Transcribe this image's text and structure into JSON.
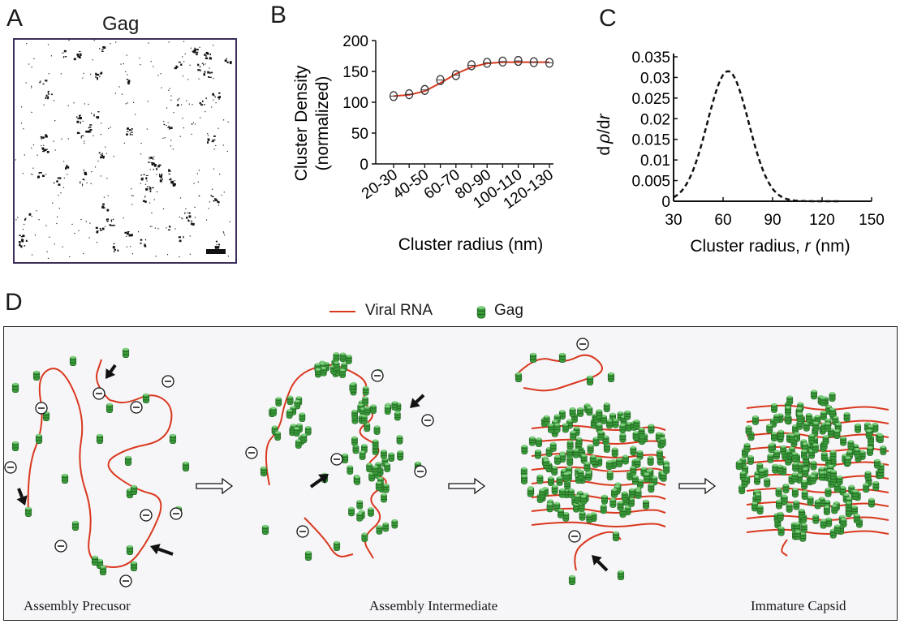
{
  "panels": {
    "a": {
      "letter": "A",
      "title": "Gag"
    },
    "b": {
      "letter": "B"
    },
    "c": {
      "letter": "C"
    },
    "d": {
      "letter": "D",
      "legend": {
        "rna": "Viral RNA",
        "gag": "Gag"
      },
      "stages": [
        "Assembly Precusor",
        "Assembly Intermediate",
        "Immature Capsid"
      ]
    }
  },
  "colors": {
    "rna": "#d9381e",
    "gag": "#3a9a3a",
    "frame": "#3c2f5a",
    "panel_bg": "#f6f6f8"
  },
  "chart_data": [
    {
      "type": "scatter",
      "xlabel": "Cluster radius (nm)",
      "ylabel": "Cluster Density (normalized)",
      "ylabel_lines": [
        "Cluster Density",
        "(normalized)"
      ],
      "ylim": [
        0,
        200
      ],
      "yticks": [
        0,
        50,
        100,
        150,
        200
      ],
      "xtick_labels": [
        "20-30",
        "40-50",
        "60-70",
        "80-90",
        "100-110",
        "120-130"
      ],
      "categories": [
        "20-30",
        "30-40",
        "40-50",
        "50-60",
        "60-70",
        "70-80",
        "80-90",
        "90-100",
        "100-110",
        "110-120",
        "120-130"
      ],
      "values": [
        110,
        113,
        120,
        136,
        144,
        160,
        164,
        166,
        167,
        165,
        164
      ],
      "fit": [
        110,
        112,
        118,
        131,
        146,
        157,
        163,
        165,
        165,
        165,
        165
      ],
      "colors": {
        "fit": "#d9381e",
        "points": "#333333"
      }
    },
    {
      "type": "line",
      "xlabel": "Cluster radius, r (nm)",
      "xlabel_parts": [
        "Cluster radius, ",
        "r",
        " (nm)"
      ],
      "ylabel_parts": [
        "d",
        "ρ",
        "/d",
        "r"
      ],
      "xlim": [
        30,
        150
      ],
      "xticks": [
        30,
        60,
        90,
        120,
        150
      ],
      "ylim": [
        0,
        0.035
      ],
      "yticks": [
        "0",
        "0.005",
        "0.01",
        "0.015",
        "0.02",
        "0.025",
        "0.03",
        "0.035"
      ],
      "peak_x": 63,
      "peak_y": 0.0315,
      "sigma": 12.5,
      "line_style": "dashed"
    }
  ]
}
